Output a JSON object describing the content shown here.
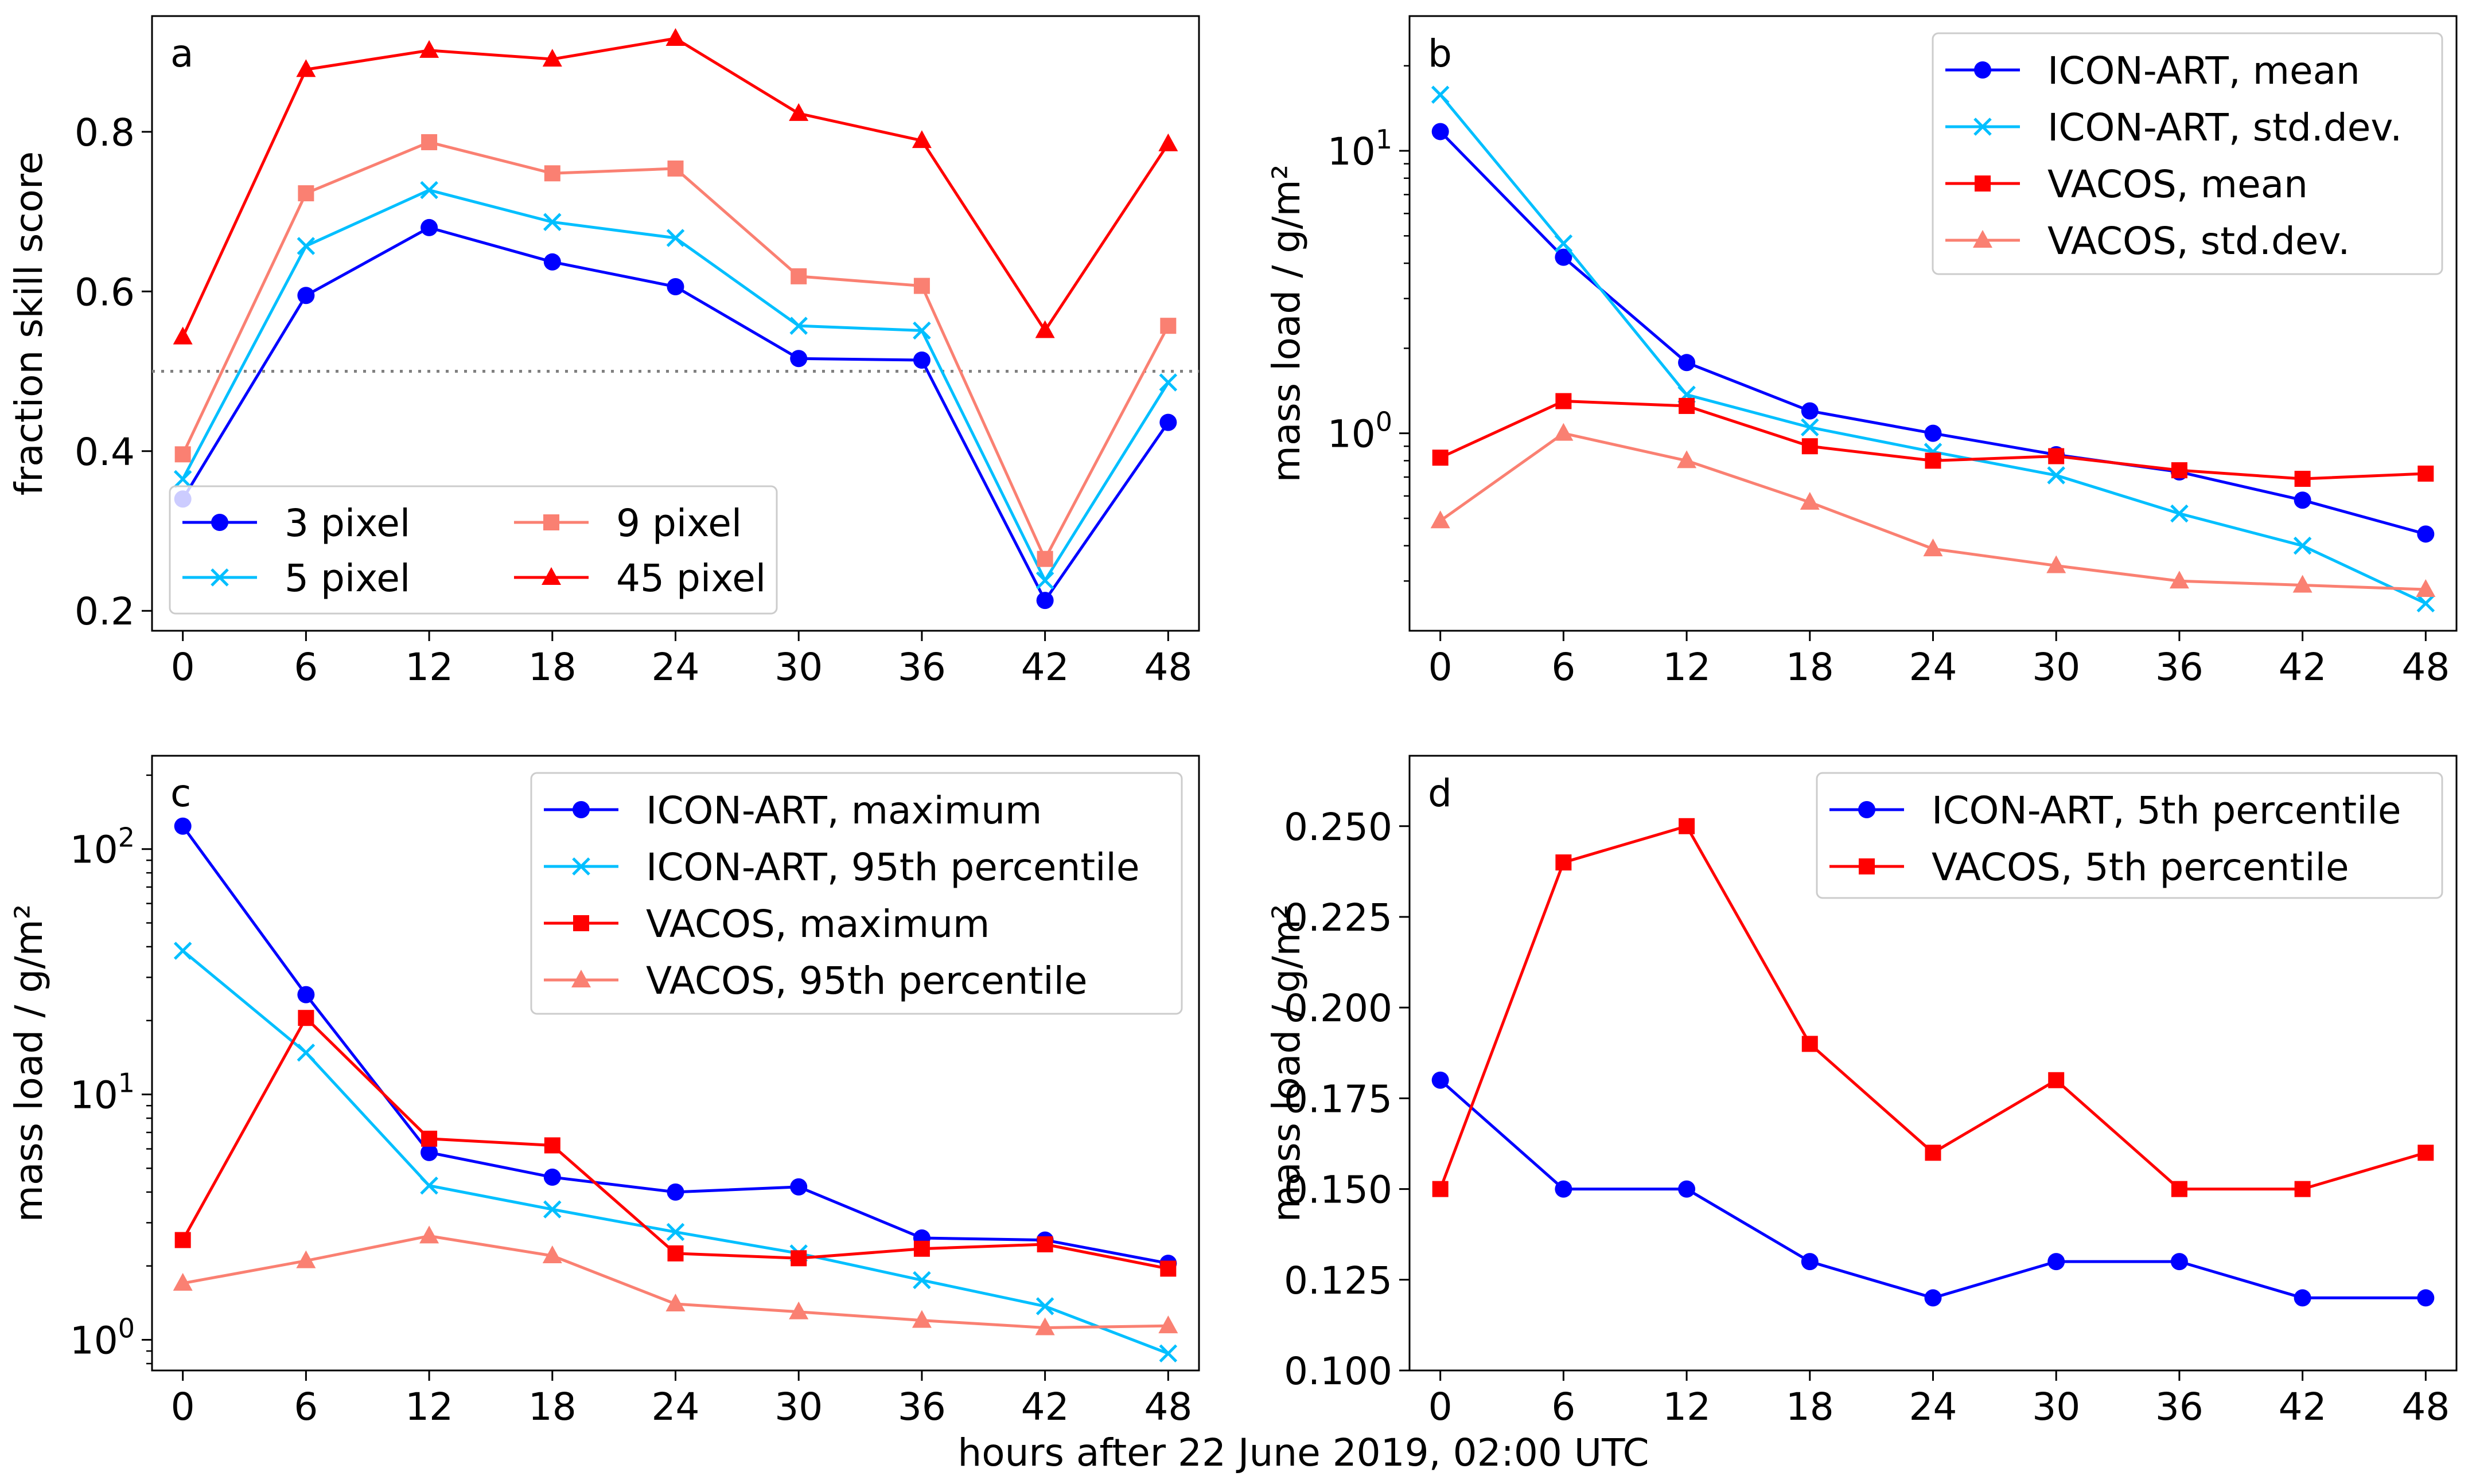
{
  "figure": {
    "xlabel": "hours after 22 June 2019, 02:00 UTC"
  },
  "chart_data": [
    {
      "panel": "a",
      "type": "line",
      "yscale": "linear",
      "x": [
        0,
        6,
        12,
        18,
        24,
        30,
        36,
        42,
        48
      ],
      "xticks": [
        "0",
        "6",
        "12",
        "18",
        "24",
        "30",
        "36",
        "42",
        "48"
      ],
      "xlim": [
        -1.5,
        49.5
      ],
      "ylim": [
        0.175,
        0.945
      ],
      "yticks": [
        0.2,
        0.4,
        0.6,
        0.8
      ],
      "ytick_labels": [
        "0.2",
        "0.4",
        "0.6",
        "0.8"
      ],
      "ylabel": "fraction skill score",
      "reference_line": {
        "y": 0.5,
        "style": "dotted",
        "color": "#808080"
      },
      "legend": {
        "position": "bottom-left",
        "columns": 2
      },
      "series": [
        {
          "name": "3 pixel",
          "color": "#0000ff",
          "marker": "circle",
          "values": [
            0.34,
            0.595,
            0.68,
            0.637,
            0.606,
            0.516,
            0.514,
            0.213,
            0.436
          ]
        },
        {
          "name": "5 pixel",
          "color": "#00bfff",
          "marker": "x",
          "values": [
            0.365,
            0.657,
            0.727,
            0.687,
            0.667,
            0.557,
            0.551,
            0.238,
            0.486
          ]
        },
        {
          "name": "9 pixel",
          "color": "#fa8072",
          "marker": "square",
          "values": [
            0.396,
            0.723,
            0.787,
            0.748,
            0.754,
            0.619,
            0.607,
            0.265,
            0.557
          ]
        },
        {
          "name": "45 pixel",
          "color": "#ff0000",
          "marker": "triangle",
          "values": [
            0.543,
            0.878,
            0.902,
            0.891,
            0.917,
            0.823,
            0.789,
            0.551,
            0.785
          ]
        }
      ]
    },
    {
      "panel": "b",
      "type": "line",
      "yscale": "log",
      "x": [
        0,
        6,
        12,
        18,
        24,
        30,
        36,
        42,
        48
      ],
      "xticks": [
        "0",
        "6",
        "12",
        "18",
        "24",
        "30",
        "36",
        "42",
        "48"
      ],
      "xlim": [
        -1.5,
        49.5
      ],
      "ylim": [
        0.2,
        30
      ],
      "yticks": [
        1,
        10
      ],
      "ytick_labels": [
        "10⁰",
        "10¹"
      ],
      "ylabel": "mass load / g/m²",
      "legend": {
        "position": "top-right",
        "columns": 1
      },
      "series": [
        {
          "name": "ICON-ART, mean",
          "color": "#0000ff",
          "marker": "circle",
          "values": [
            11.7,
            4.2,
            1.78,
            1.2,
            1.0,
            0.84,
            0.73,
            0.58,
            0.44
          ]
        },
        {
          "name": "ICON-ART, std.dev.",
          "color": "#00bfff",
          "marker": "x",
          "values": [
            15.8,
            4.7,
            1.37,
            1.05,
            0.86,
            0.71,
            0.52,
            0.4,
            0.25
          ]
        },
        {
          "name": "VACOS, mean",
          "color": "#ff0000",
          "marker": "square",
          "values": [
            0.82,
            1.3,
            1.25,
            0.9,
            0.8,
            0.83,
            0.74,
            0.69,
            0.72
          ]
        },
        {
          "name": "VACOS, std.dev.",
          "color": "#fa8072",
          "marker": "triangle",
          "values": [
            0.49,
            1.0,
            0.8,
            0.57,
            0.39,
            0.34,
            0.3,
            0.29,
            0.28
          ]
        }
      ]
    },
    {
      "panel": "c",
      "type": "line",
      "yscale": "log",
      "x": [
        0,
        6,
        12,
        18,
        24,
        30,
        36,
        42,
        48
      ],
      "xticks": [
        "0",
        "6",
        "12",
        "18",
        "24",
        "30",
        "36",
        "42",
        "48"
      ],
      "xlim": [
        -1.5,
        49.5
      ],
      "ylim": [
        0.75,
        240
      ],
      "yticks": [
        1,
        10,
        100
      ],
      "ytick_labels": [
        "10⁰",
        "10¹",
        "10²"
      ],
      "ylabel": "mass load / g/m²",
      "legend": {
        "position": "top-right",
        "columns": 1
      },
      "series": [
        {
          "name": "ICON-ART, maximum",
          "color": "#0000ff",
          "marker": "circle",
          "values": [
            124,
            25.5,
            5.8,
            4.6,
            4.0,
            4.2,
            2.6,
            2.55,
            2.05
          ]
        },
        {
          "name": "ICON-ART, 95th percentile",
          "color": "#00bfff",
          "marker": "x",
          "values": [
            38.5,
            14.8,
            4.25,
            3.4,
            2.75,
            2.25,
            1.75,
            1.37,
            0.88
          ]
        },
        {
          "name": "VACOS, maximum",
          "color": "#ff0000",
          "marker": "square",
          "values": [
            2.55,
            20.5,
            6.6,
            6.2,
            2.25,
            2.15,
            2.35,
            2.45,
            1.95
          ]
        },
        {
          "name": "VACOS, 95th percentile",
          "color": "#fa8072",
          "marker": "triangle",
          "values": [
            1.7,
            2.1,
            2.65,
            2.2,
            1.4,
            1.3,
            1.2,
            1.12,
            1.14
          ]
        }
      ]
    },
    {
      "panel": "d",
      "type": "line",
      "yscale": "linear",
      "x": [
        0,
        6,
        12,
        18,
        24,
        30,
        36,
        42,
        48
      ],
      "xticks": [
        "0",
        "6",
        "12",
        "18",
        "24",
        "30",
        "36",
        "42",
        "48"
      ],
      "xlim": [
        -1.5,
        49.5
      ],
      "ylim": [
        0.1,
        0.2694
      ],
      "yticks": [
        0.1,
        0.125,
        0.15,
        0.175,
        0.2,
        0.225,
        0.25
      ],
      "ytick_labels": [
        "0.100",
        "0.125",
        "0.150",
        "0.175",
        "0.200",
        "0.225",
        "0.250"
      ],
      "ylabel": "mass load / g/m²",
      "legend": {
        "position": "top-right",
        "columns": 1
      },
      "series": [
        {
          "name": "ICON-ART, 5th percentile",
          "color": "#0000ff",
          "marker": "circle",
          "values": [
            0.18,
            0.15,
            0.15,
            0.13,
            0.12,
            0.13,
            0.13,
            0.12,
            0.12
          ]
        },
        {
          "name": "VACOS, 5th percentile",
          "color": "#ff0000",
          "marker": "square",
          "values": [
            0.15,
            0.24,
            0.25,
            0.19,
            0.16,
            0.18,
            0.15,
            0.15,
            0.16
          ]
        }
      ]
    }
  ]
}
